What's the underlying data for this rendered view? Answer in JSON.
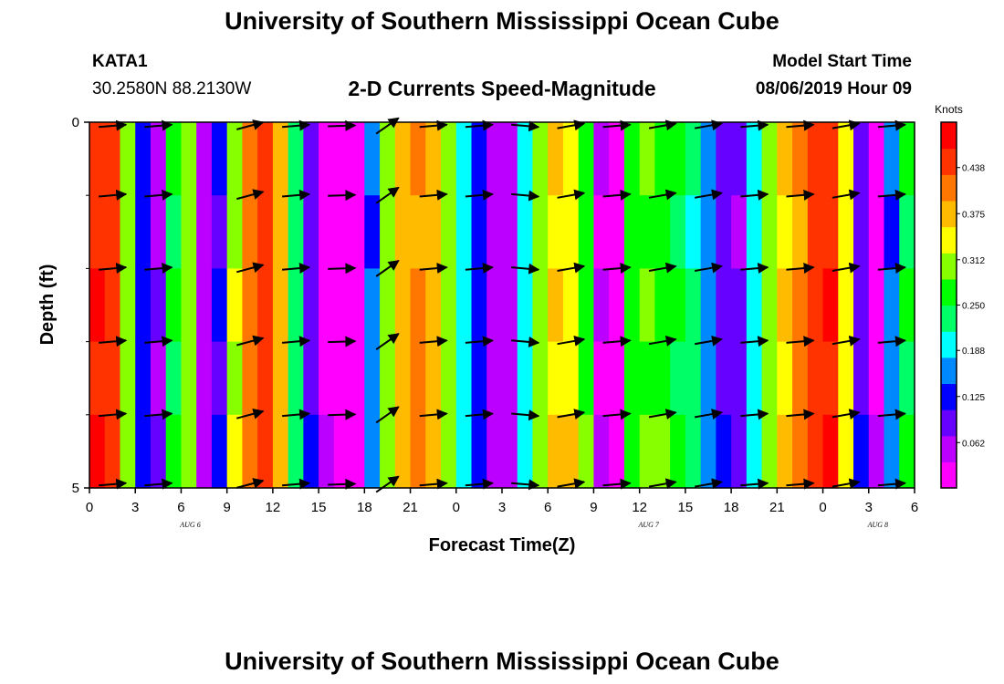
{
  "header": {
    "title": "University of Southern Mississippi Ocean Cube",
    "station": "KATA1",
    "coords": "30.2580N 88.2130W",
    "subtitle": "2-D Currents Speed-Magnitude",
    "model_start_label": "Model Start Time",
    "model_start_value": "08/06/2019 Hour 09"
  },
  "footer": {
    "title": "University of Southern Mississippi Ocean Cube"
  },
  "chart_data": {
    "type": "heatmap",
    "title": "2-D Currents Speed-Magnitude",
    "xlabel": "Forecast Time(Z)",
    "ylabel": "Depth (ft)",
    "ylim": [
      0,
      5
    ],
    "y_ticks": [
      "0",
      "5"
    ],
    "x_ticks": [
      "0",
      "3",
      "6",
      "9",
      "12",
      "15",
      "18",
      "21",
      "0",
      "3",
      "6",
      "9",
      "12",
      "15",
      "18",
      "21",
      "0",
      "3",
      "6"
    ],
    "date_labels": [
      {
        "label": "AUG 6",
        "tick_index": 2
      },
      {
        "label": "AUG 7",
        "tick_index": 12
      },
      {
        "label": "AUG 8",
        "tick_index": 17
      }
    ],
    "colorbar": {
      "unit": "Knots",
      "min": 0,
      "max": 0.5,
      "labels": [
        "0.438",
        "0.375",
        "0.312",
        "0.250",
        "0.188",
        "0.125",
        "0.062"
      ],
      "colors": [
        "#ff00ff",
        "#bb00ff",
        "#6600ff",
        "#0000ff",
        "#0088ff",
        "#00ffff",
        "#00ff66",
        "#00ff00",
        "#88ff00",
        "#ffff00",
        "#ffbb00",
        "#ff7700",
        "#ff3300",
        "#ff0000"
      ]
    },
    "depth_levels": [
      0,
      1,
      2,
      3,
      4,
      5
    ],
    "speed_columns": [
      0.46,
      0.44,
      0.31,
      0.12,
      0.07,
      0.25,
      0.3,
      0.05,
      0.11,
      0.32,
      0.41,
      0.44,
      0.37,
      0.23,
      0.1,
      0.03,
      0.02,
      0.01,
      0.15,
      0.3,
      0.38,
      0.4,
      0.37,
      0.3,
      0.2,
      0.12,
      0.06,
      0.05,
      0.2,
      0.3,
      0.36,
      0.35,
      0.28,
      0.04,
      0.02,
      0.26,
      0.29,
      0.28,
      0.25,
      0.22,
      0.16,
      0.1,
      0.08,
      0.2,
      0.3,
      0.36,
      0.4,
      0.45,
      0.46,
      0.34,
      0.1,
      0.03,
      0.15,
      0.25
    ],
    "vector_times_hours": [
      1.5,
      4.5,
      10.5,
      13.5,
      16.5,
      19.5,
      22.5,
      25.5,
      28.5,
      31.5,
      34.5,
      37.5,
      40.5,
      43.5,
      46.5,
      49.5,
      52.5
    ],
    "vector_directions_deg": [
      5,
      5,
      15,
      5,
      2,
      35,
      5,
      5,
      -5,
      10,
      5,
      10,
      10,
      5,
      5,
      10,
      5
    ]
  }
}
